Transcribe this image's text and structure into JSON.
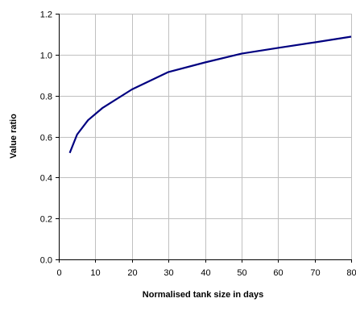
{
  "chart_data": {
    "type": "line",
    "xlabel": "Normalised tank size in days",
    "ylabel": "Value ratio",
    "xlim": [
      0,
      80
    ],
    "ylim": [
      0,
      1.2
    ],
    "xticks": [
      "0",
      "10",
      "20",
      "30",
      "40",
      "50",
      "60",
      "70",
      "80"
    ],
    "yticks": [
      "0.0",
      "0.2",
      "0.4",
      "0.6",
      "0.8",
      "1.0",
      "1.2"
    ],
    "grid": true,
    "legend": "none",
    "line_color": "#000080",
    "grid_color": "#c0c0c0",
    "series": [
      {
        "x": [
          3,
          5,
          8,
          12,
          20,
          30,
          40,
          50,
          60,
          70,
          80
        ],
        "y": [
          0.52,
          0.61,
          0.68,
          0.74,
          0.83,
          0.915,
          0.962,
          1.005,
          1.033,
          1.06,
          1.088
        ]
      }
    ]
  }
}
